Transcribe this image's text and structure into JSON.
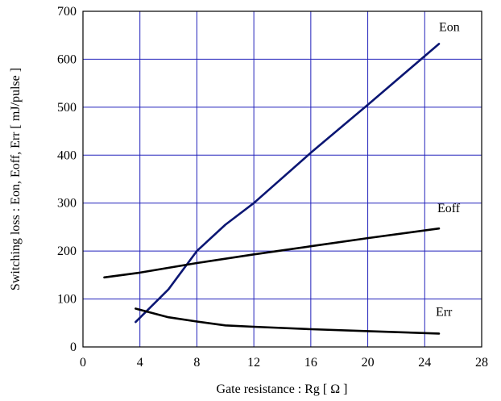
{
  "chart_data": {
    "type": "line",
    "title": "",
    "xlabel": "Gate resistance  :  Rg  [ Ω ]",
    "ylabel": "Switching loss  :  Eon, Eoff, Err  [ mJ/pulse ]",
    "xlim": [
      0,
      28
    ],
    "ylim": [
      0,
      700
    ],
    "xticks": [
      "0",
      "4",
      "8",
      "12",
      "16",
      "20",
      "24",
      "28"
    ],
    "yticks": [
      "0",
      "100",
      "200",
      "300",
      "400",
      "500",
      "600",
      "700"
    ],
    "grid": true,
    "grid_color": "#2222bb",
    "series": [
      {
        "name": "Eon",
        "color": "#0b1673",
        "points": [
          [
            3.7,
            52
          ],
          [
            6,
            120
          ],
          [
            8,
            200
          ],
          [
            10,
            255
          ],
          [
            12,
            300
          ],
          [
            16,
            405
          ],
          [
            20,
            505
          ],
          [
            25,
            632
          ]
        ]
      },
      {
        "name": "Eoff",
        "color": "#000000",
        "points": [
          [
            1.5,
            145
          ],
          [
            4,
            155
          ],
          [
            8,
            175
          ],
          [
            12,
            193
          ],
          [
            16,
            210
          ],
          [
            20,
            227
          ],
          [
            25,
            247
          ]
        ]
      },
      {
        "name": "Err",
        "color": "#000000",
        "points": [
          [
            3.7,
            80
          ],
          [
            6,
            62
          ],
          [
            8,
            53
          ],
          [
            10,
            45
          ],
          [
            12,
            42
          ],
          [
            16,
            37
          ],
          [
            20,
            33
          ],
          [
            25,
            28
          ]
        ]
      }
    ]
  }
}
